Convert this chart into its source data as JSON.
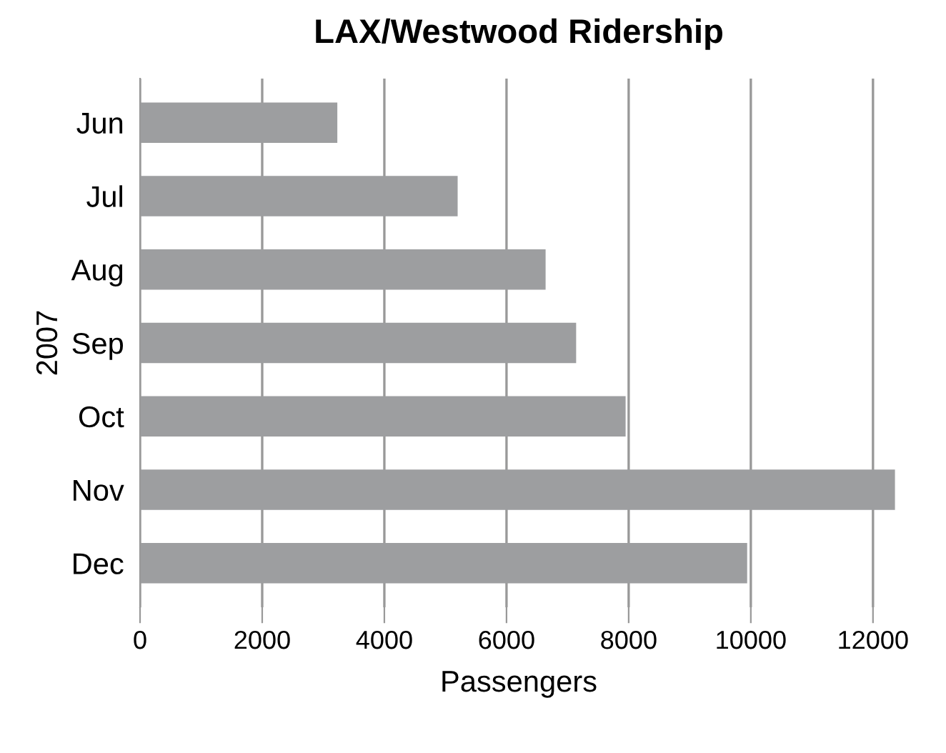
{
  "chart_data": {
    "type": "bar",
    "orientation": "horizontal",
    "title": "LAX/Westwood Ridership",
    "xlabel": "Passengers",
    "ylabel": "2007",
    "categories": [
      "Jun",
      "Jul",
      "Aug",
      "Sep",
      "Oct",
      "Nov",
      "Dec"
    ],
    "values": [
      3230,
      5200,
      6640,
      7140,
      7950,
      12360,
      9940
    ],
    "color": "#9d9ea0",
    "xlim": [
      0,
      12400
    ],
    "xticks": [
      0,
      2000,
      4000,
      6000,
      8000,
      10000,
      12000
    ],
    "grid": "x",
    "legend": false
  }
}
